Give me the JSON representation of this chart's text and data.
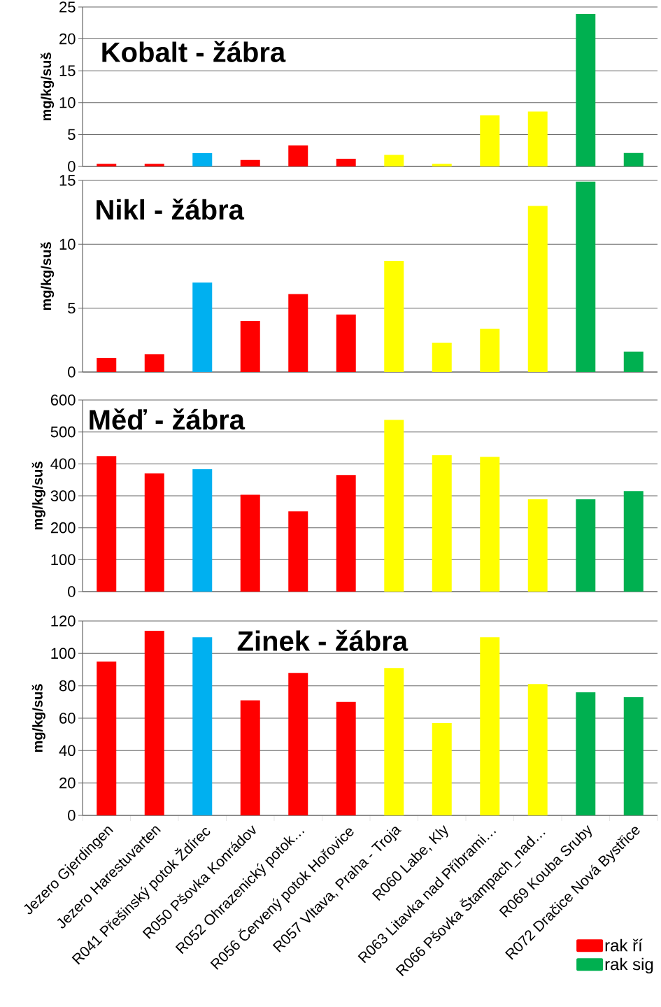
{
  "chart_data": [
    {
      "type": "bar",
      "title": "Kobalt - žábra",
      "ylabel": "mg/kg/suš",
      "ylim": [
        0,
        25
      ],
      "yticks": [
        0,
        5,
        10,
        15,
        20,
        25
      ],
      "grid": "y",
      "tick_labels": "y",
      "categories": [
        null,
        null,
        null,
        null,
        null,
        null,
        null,
        null,
        null,
        null,
        null,
        null
      ],
      "series": [
        {
          "color": "#ff0000",
          "values": [
            0.4,
            0.4,
            null,
            1.0,
            3.3,
            1.2,
            null,
            null,
            null,
            null,
            null,
            null
          ]
        },
        {
          "color": "#00b0f0",
          "values": [
            null,
            null,
            2.1,
            null,
            null,
            null,
            null,
            null,
            null,
            null,
            null,
            null
          ]
        },
        {
          "color": "#ffff00",
          "values": [
            null,
            null,
            null,
            null,
            null,
            null,
            1.8,
            0.4,
            8.0,
            8.6,
            null,
            null
          ]
        },
        {
          "color": "#00b050",
          "values": [
            null,
            null,
            null,
            null,
            null,
            null,
            null,
            null,
            null,
            null,
            23.9,
            2.1
          ]
        }
      ]
    },
    {
      "type": "bar",
      "title": "Nikl - žábra",
      "ylabel": "mg/kg/suš",
      "ylim": [
        0,
        15
      ],
      "yticks": [
        0,
        5,
        10,
        15
      ],
      "grid": "y",
      "tick_labels": "y",
      "categories": [
        null,
        null,
        null,
        null,
        null,
        null,
        null,
        null,
        null,
        null,
        null,
        null
      ],
      "series": [
        {
          "color": "#ff0000",
          "values": [
            1.1,
            1.4,
            null,
            4.0,
            6.1,
            4.5,
            null,
            null,
            null,
            null,
            null,
            null
          ]
        },
        {
          "color": "#00b0f0",
          "values": [
            null,
            null,
            7.0,
            null,
            null,
            null,
            null,
            null,
            null,
            null,
            null,
            null
          ]
        },
        {
          "color": "#ffff00",
          "values": [
            null,
            null,
            null,
            null,
            null,
            null,
            8.7,
            2.3,
            3.4,
            13.0,
            null,
            null
          ]
        },
        {
          "color": "#00b050",
          "values": [
            null,
            null,
            null,
            null,
            null,
            null,
            null,
            null,
            null,
            null,
            14.9,
            1.6
          ]
        }
      ]
    },
    {
      "type": "bar",
      "title": "Měď - žábra",
      "ylabel": "mg/kg/suš",
      "ylim": [
        0,
        600
      ],
      "yticks": [
        0,
        100,
        200,
        300,
        400,
        500,
        600
      ],
      "grid": "y",
      "tick_labels": "y",
      "categories": [
        null,
        null,
        null,
        null,
        null,
        null,
        null,
        null,
        null,
        null,
        null,
        null
      ],
      "series": [
        {
          "color": "#ff0000",
          "values": [
            424,
            370,
            null,
            303,
            251,
            365,
            null,
            null,
            null,
            null,
            null,
            null
          ]
        },
        {
          "color": "#00b0f0",
          "values": [
            null,
            null,
            383,
            null,
            null,
            null,
            null,
            null,
            null,
            null,
            null,
            null
          ]
        },
        {
          "color": "#ffff00",
          "values": [
            null,
            null,
            null,
            null,
            null,
            null,
            538,
            427,
            422,
            289,
            null,
            null
          ]
        },
        {
          "color": "#00b050",
          "values": [
            null,
            null,
            null,
            null,
            null,
            null,
            null,
            null,
            null,
            null,
            289,
            315
          ]
        }
      ]
    },
    {
      "type": "bar",
      "title": "Zinek - žábra",
      "ylabel": "mg/kg/suš",
      "ylim": [
        0,
        120
      ],
      "yticks": [
        0,
        20,
        40,
        60,
        80,
        100,
        120
      ],
      "grid": "y",
      "legend": "bottom right",
      "categories": [
        "Jezero Gjerdingen",
        "Jezero Harestuvarten",
        "R041 Přešinský potok Ždírec",
        "R050 Pšovka Konrádov",
        "R052 Ohrazenický potok…",
        "R056 Červený potok Hořovice",
        "R057  Vltava, Praha - Troja",
        "R060  Labe, Kly",
        "R063 Litavka nad Příbrami…",
        "R066 Pšovka Štampach_nad…",
        "R069  Kouba Sruby",
        "R072  Dračice Nová Bystřice"
      ],
      "series": [
        {
          "name": "rak ří",
          "color": "#ff0000",
          "values": [
            95,
            114,
            null,
            71,
            88,
            70,
            null,
            null,
            null,
            null,
            null,
            null
          ]
        },
        {
          "color": "#00b0f0",
          "values": [
            null,
            null,
            110,
            null,
            null,
            null,
            null,
            null,
            null,
            null,
            null,
            null
          ]
        },
        {
          "color": "#ffff00",
          "values": [
            null,
            null,
            null,
            null,
            null,
            null,
            91,
            57,
            110,
            81,
            null,
            null
          ]
        },
        {
          "name": "rak sig",
          "color": "#00b050",
          "values": [
            null,
            null,
            null,
            null,
            null,
            null,
            null,
            null,
            null,
            null,
            76,
            73
          ]
        }
      ]
    }
  ]
}
